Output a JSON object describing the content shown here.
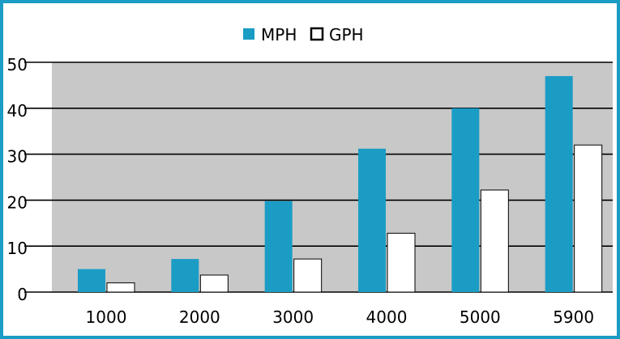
{
  "chart_data": {
    "type": "bar",
    "categories": [
      "1000",
      "2000",
      "3000",
      "4000",
      "5000",
      "5900"
    ],
    "series": [
      {
        "name": "MPH",
        "values": [
          5,
          7.2,
          19.8,
          31.2,
          40,
          47
        ],
        "color": "#1a9cc5"
      },
      {
        "name": "GPH",
        "values": [
          2,
          3.7,
          7.2,
          12.8,
          22.2,
          32
        ],
        "color": "#ffffff"
      }
    ],
    "ylim": [
      0,
      50
    ],
    "yticks": [
      "0",
      "10",
      "20",
      "30",
      "40",
      "50"
    ],
    "grid": true,
    "legend_position": "top",
    "plot_background": "#c8c8c8",
    "frame_color": "#1a9cc5"
  }
}
